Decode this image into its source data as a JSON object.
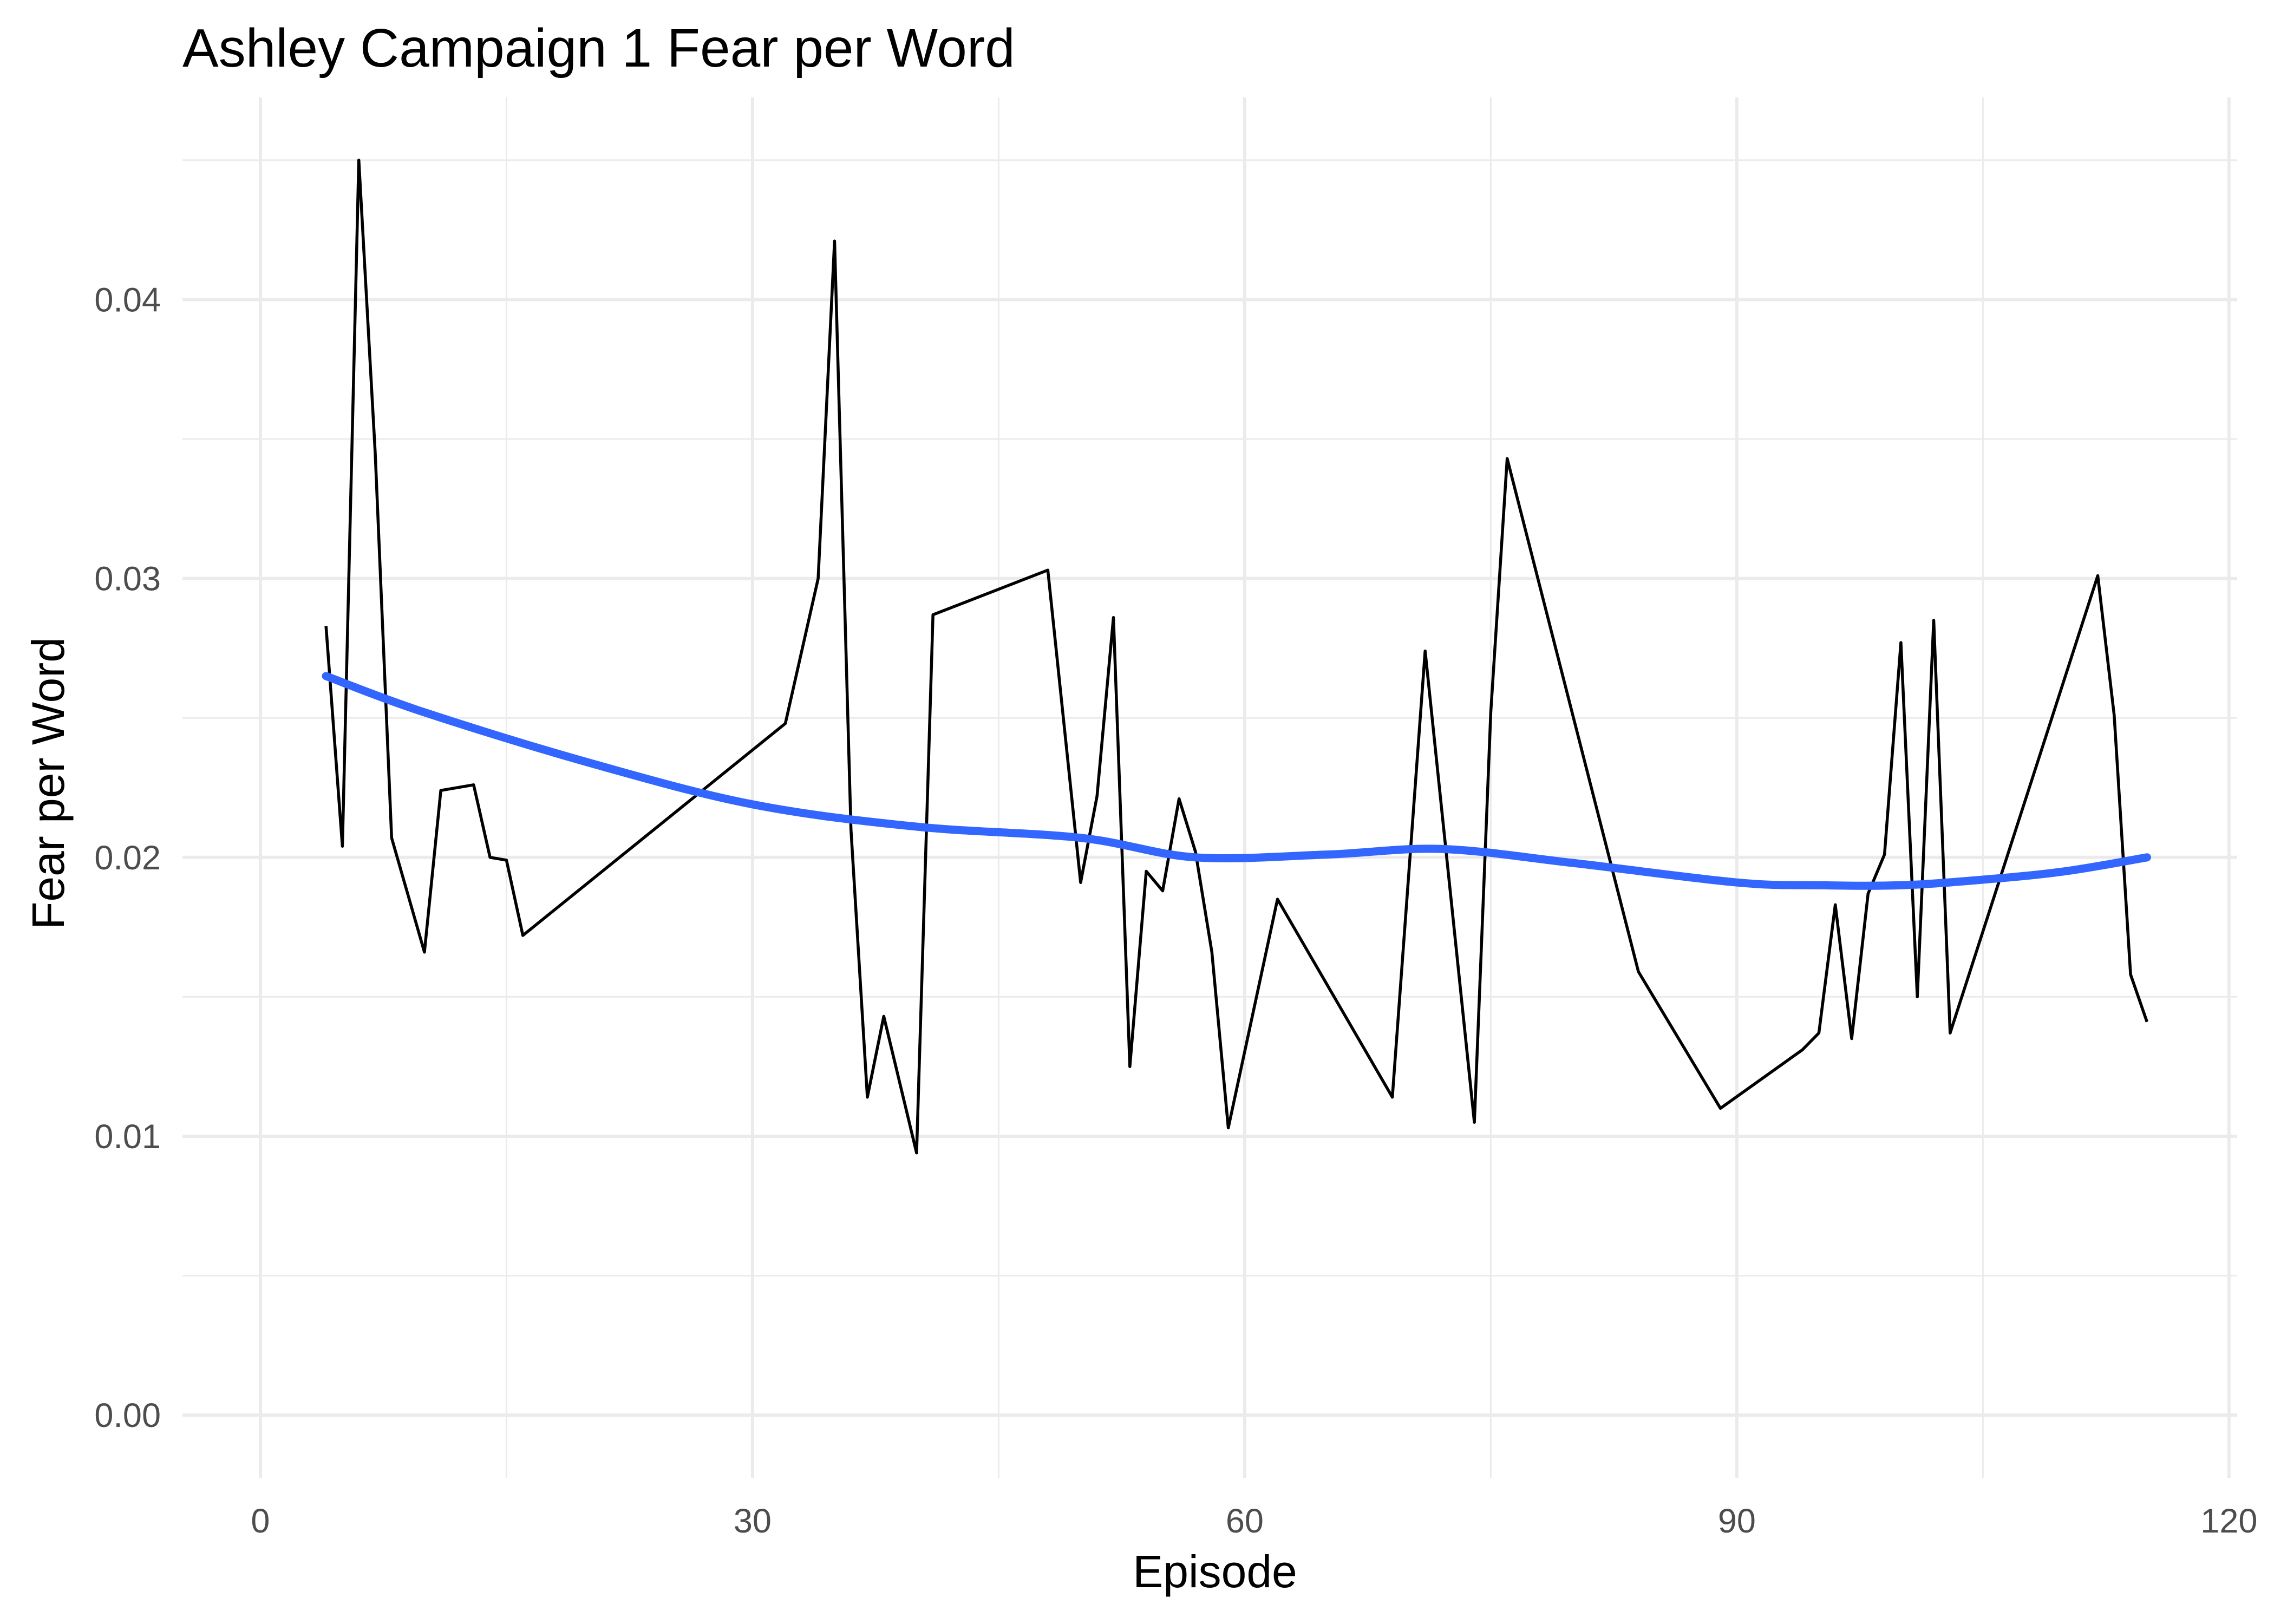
{
  "chart_data": {
    "type": "line",
    "title": "Ashley Campaign 1 Fear per Word",
    "xlabel": "Episode",
    "ylabel": "Fear per Word",
    "xlim": [
      -4.75,
      120.5
    ],
    "ylim": [
      -0.00225,
      0.04725
    ],
    "x_ticks": [
      0,
      30,
      60,
      90,
      120
    ],
    "x_tick_labels": [
      "0",
      "30",
      "60",
      "90",
      "120"
    ],
    "x_minor_ticks": [
      15,
      45,
      75,
      105
    ],
    "y_ticks": [
      0,
      0.01,
      0.02,
      0.03,
      0.04
    ],
    "y_tick_labels": [
      "0.00",
      "0.01",
      "0.02",
      "0.03",
      "0.04"
    ],
    "y_minor_ticks": [
      0.005,
      0.015,
      0.025,
      0.035,
      0.045
    ],
    "grid": true,
    "series": [
      {
        "name": "",
        "color": "#000000",
        "x": [
          4,
          5,
          6,
          7,
          8,
          10,
          11,
          13,
          14,
          15,
          16,
          32,
          34,
          35,
          36,
          37,
          38,
          40,
          41,
          48,
          50,
          51,
          52,
          53,
          54,
          55,
          56,
          57,
          58,
          59,
          62,
          69,
          71,
          74,
          75,
          76,
          84,
          89,
          94,
          95,
          96,
          97,
          98,
          99,
          100,
          101,
          102,
          103,
          112,
          113,
          114,
          115
        ],
        "values": [
          0.0283,
          0.0204,
          0.045,
          0.0345,
          0.0207,
          0.0166,
          0.0224,
          0.0226,
          0.02,
          0.0199,
          0.0172,
          0.0248,
          0.03,
          0.0421,
          0.021,
          0.0114,
          0.0143,
          0.0094,
          0.0287,
          0.0303,
          0.0191,
          0.0222,
          0.0286,
          0.0125,
          0.0195,
          0.0188,
          0.0221,
          0.0202,
          0.0166,
          0.0103,
          0.0185,
          0.0114,
          0.0274,
          0.0105,
          0.0252,
          0.0343,
          0.0159,
          0.011,
          0.0131,
          0.0137,
          0.0183,
          0.0135,
          0.0187,
          0.0201,
          0.0277,
          0.015,
          0.0285,
          0.0137,
          0.0301,
          0.0251,
          0.0158,
          0.0141
        ]
      },
      {
        "name": "",
        "color": "#3366ff",
        "x": [
          4,
          10,
          20,
          30,
          40,
          50,
          57,
          65,
          72,
          80,
          90,
          95,
          100,
          105,
          110,
          115
        ],
        "values": [
          0.0265,
          0.0252,
          0.0234,
          0.0219,
          0.0211,
          0.0207,
          0.02,
          0.0201,
          0.0203,
          0.0198,
          0.0191,
          0.019,
          0.019,
          0.0192,
          0.0195,
          0.02
        ]
      }
    ]
  }
}
